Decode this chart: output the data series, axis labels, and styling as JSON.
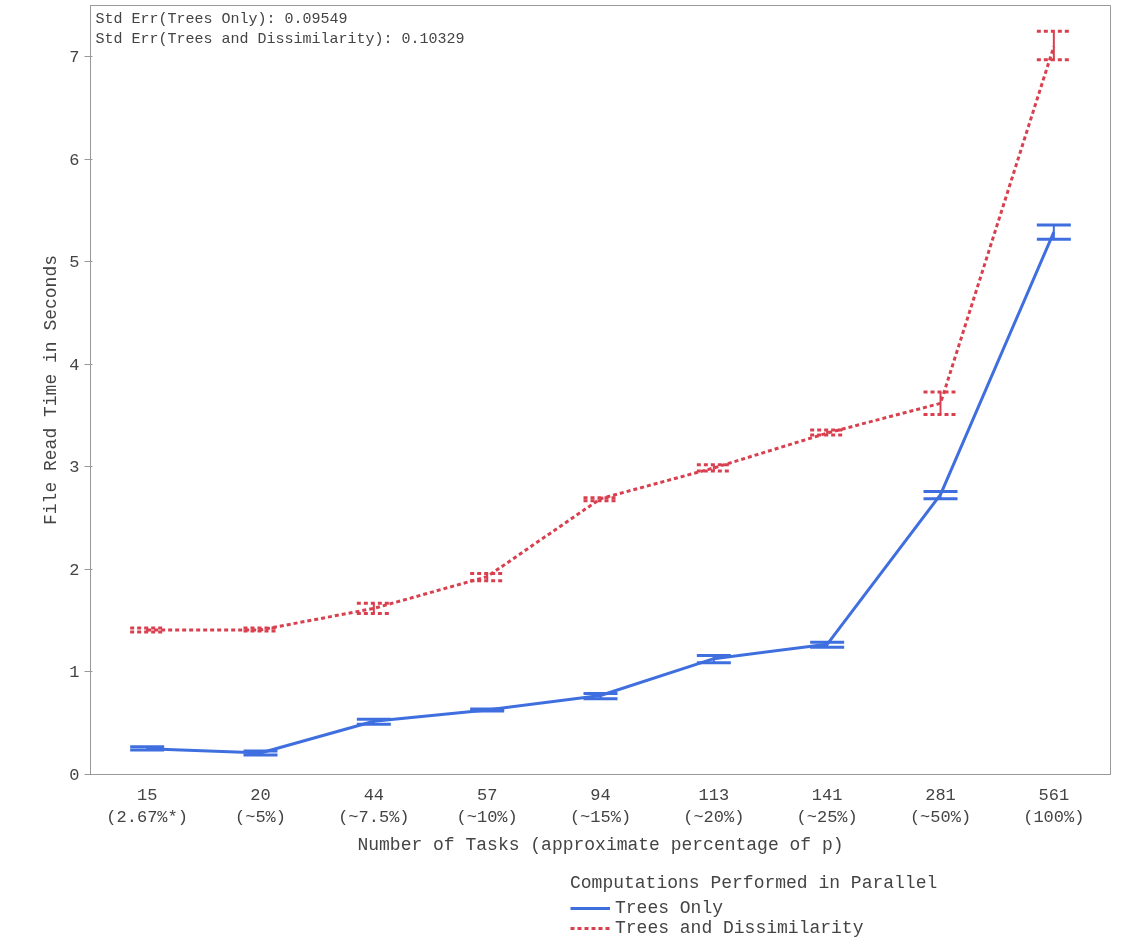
{
  "chart_data": {
    "type": "line",
    "xlabel": "Number of Tasks (approximate percentage of p)",
    "ylabel": "File Read Time in Seconds",
    "legend_title": "Computations Performed in Parallel",
    "categories": [
      "15\n(2.67%*)",
      "20\n(~5%)",
      "44\n(~7.5%)",
      "57\n(~10%)",
      "94\n(~15%)",
      "113\n(~20%)",
      "141\n(~25%)",
      "281\n(~50%)",
      "561\n(100%)"
    ],
    "series": [
      {
        "name": "Trees Only",
        "color": "#3f6fdf",
        "line_style": "solid",
        "values": [
          0.25,
          0.21,
          0.52,
          0.63,
          0.77,
          1.13,
          1.27,
          2.73,
          5.29
        ],
        "errors": [
          [
            0.24,
            0.27
          ],
          [
            0.19,
            0.23
          ],
          [
            0.49,
            0.54
          ],
          [
            0.62,
            0.64
          ],
          [
            0.74,
            0.79
          ],
          [
            1.09,
            1.16
          ],
          [
            1.24,
            1.29
          ],
          [
            2.69,
            2.76
          ],
          [
            5.22,
            5.36
          ]
        ]
      },
      {
        "name": "Trees and Dissimilarity",
        "color": "#d9404f",
        "line_style": "dashed",
        "values": [
          1.41,
          1.41,
          1.62,
          1.93,
          2.69,
          2.99,
          3.33,
          3.62,
          7.1
        ],
        "errors": [
          [
            1.39,
            1.43
          ],
          [
            1.4,
            1.43
          ],
          [
            1.57,
            1.67
          ],
          [
            1.89,
            1.96
          ],
          [
            2.67,
            2.7
          ],
          [
            2.96,
            3.02
          ],
          [
            3.31,
            3.36
          ],
          [
            3.51,
            3.73
          ],
          [
            6.97,
            7.25
          ]
        ]
      }
    ],
    "ylim": [
      0,
      7.5
    ],
    "yticks": [
      0,
      1,
      2,
      3,
      4,
      5,
      6,
      7
    ],
    "grid": false,
    "legend": "bottom",
    "marker": "none",
    "annotations": [
      "Std Err(Trees Only): 0.09549\nStd Err(Trees and Dissimilarity): 0.10329"
    ]
  }
}
